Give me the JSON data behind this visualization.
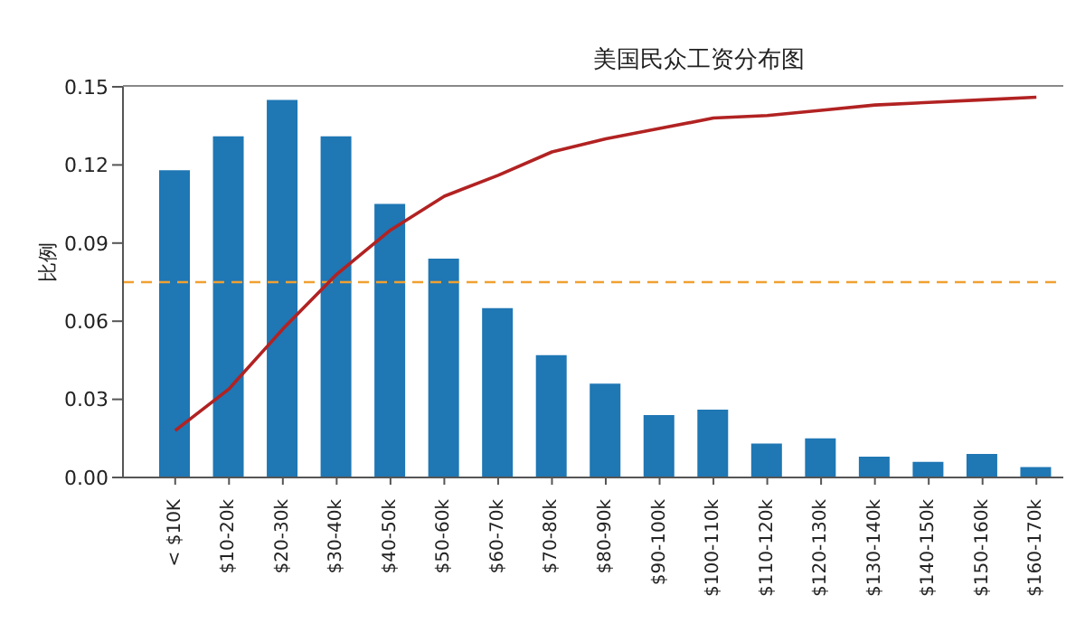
{
  "chart_data": {
    "type": "bar",
    "title": "美国民众工资分布图",
    "ylabel": "比例",
    "categories": [
      "< $10K",
      "$10-20k",
      "$20-30k",
      "$30-40k",
      "$40-50k",
      "$50-60k",
      "$60-70k",
      "$70-80k",
      "$80-90k",
      "$90-100k",
      "$100-110k",
      "$110-120k",
      "$120-130k",
      "$130-140k",
      "$140-150k",
      "$150-160k",
      "$160-170k"
    ],
    "series": [
      {
        "color": "#1f77b4",
        "values": [
          0.118,
          0.131,
          0.145,
          0.131,
          0.105,
          0.084,
          0.065,
          0.047,
          0.036,
          0.024,
          0.026,
          0.013,
          0.015,
          0.008,
          0.006,
          0.009,
          0.004
        ]
      },
      {
        "type": "line",
        "color": "#b22222",
        "values": [
          0.018,
          0.034,
          0.057,
          0.078,
          0.095,
          0.108,
          0.116,
          0.125,
          0.13,
          0.134,
          0.138,
          0.139,
          0.141,
          0.143,
          0.144,
          0.145,
          0.146
        ]
      }
    ],
    "ylim": [
      0,
      0.15
    ],
    "yticks": [
      {
        "value": 0,
        "label": "0.00"
      },
      {
        "value": 0.03,
        "label": "0.03"
      },
      {
        "value": 0.06,
        "label": "0.06"
      },
      {
        "value": 0.09,
        "label": "0.09"
      },
      {
        "value": 0.12,
        "label": "0.12"
      },
      {
        "value": 0.15,
        "label": "0.15"
      }
    ],
    "ref_lines": [
      {
        "axis": "y",
        "value": 0.075,
        "color": "#f0a030",
        "line_style": "dashed"
      }
    ],
    "grid": false,
    "legend": false,
    "marker": "none"
  }
}
